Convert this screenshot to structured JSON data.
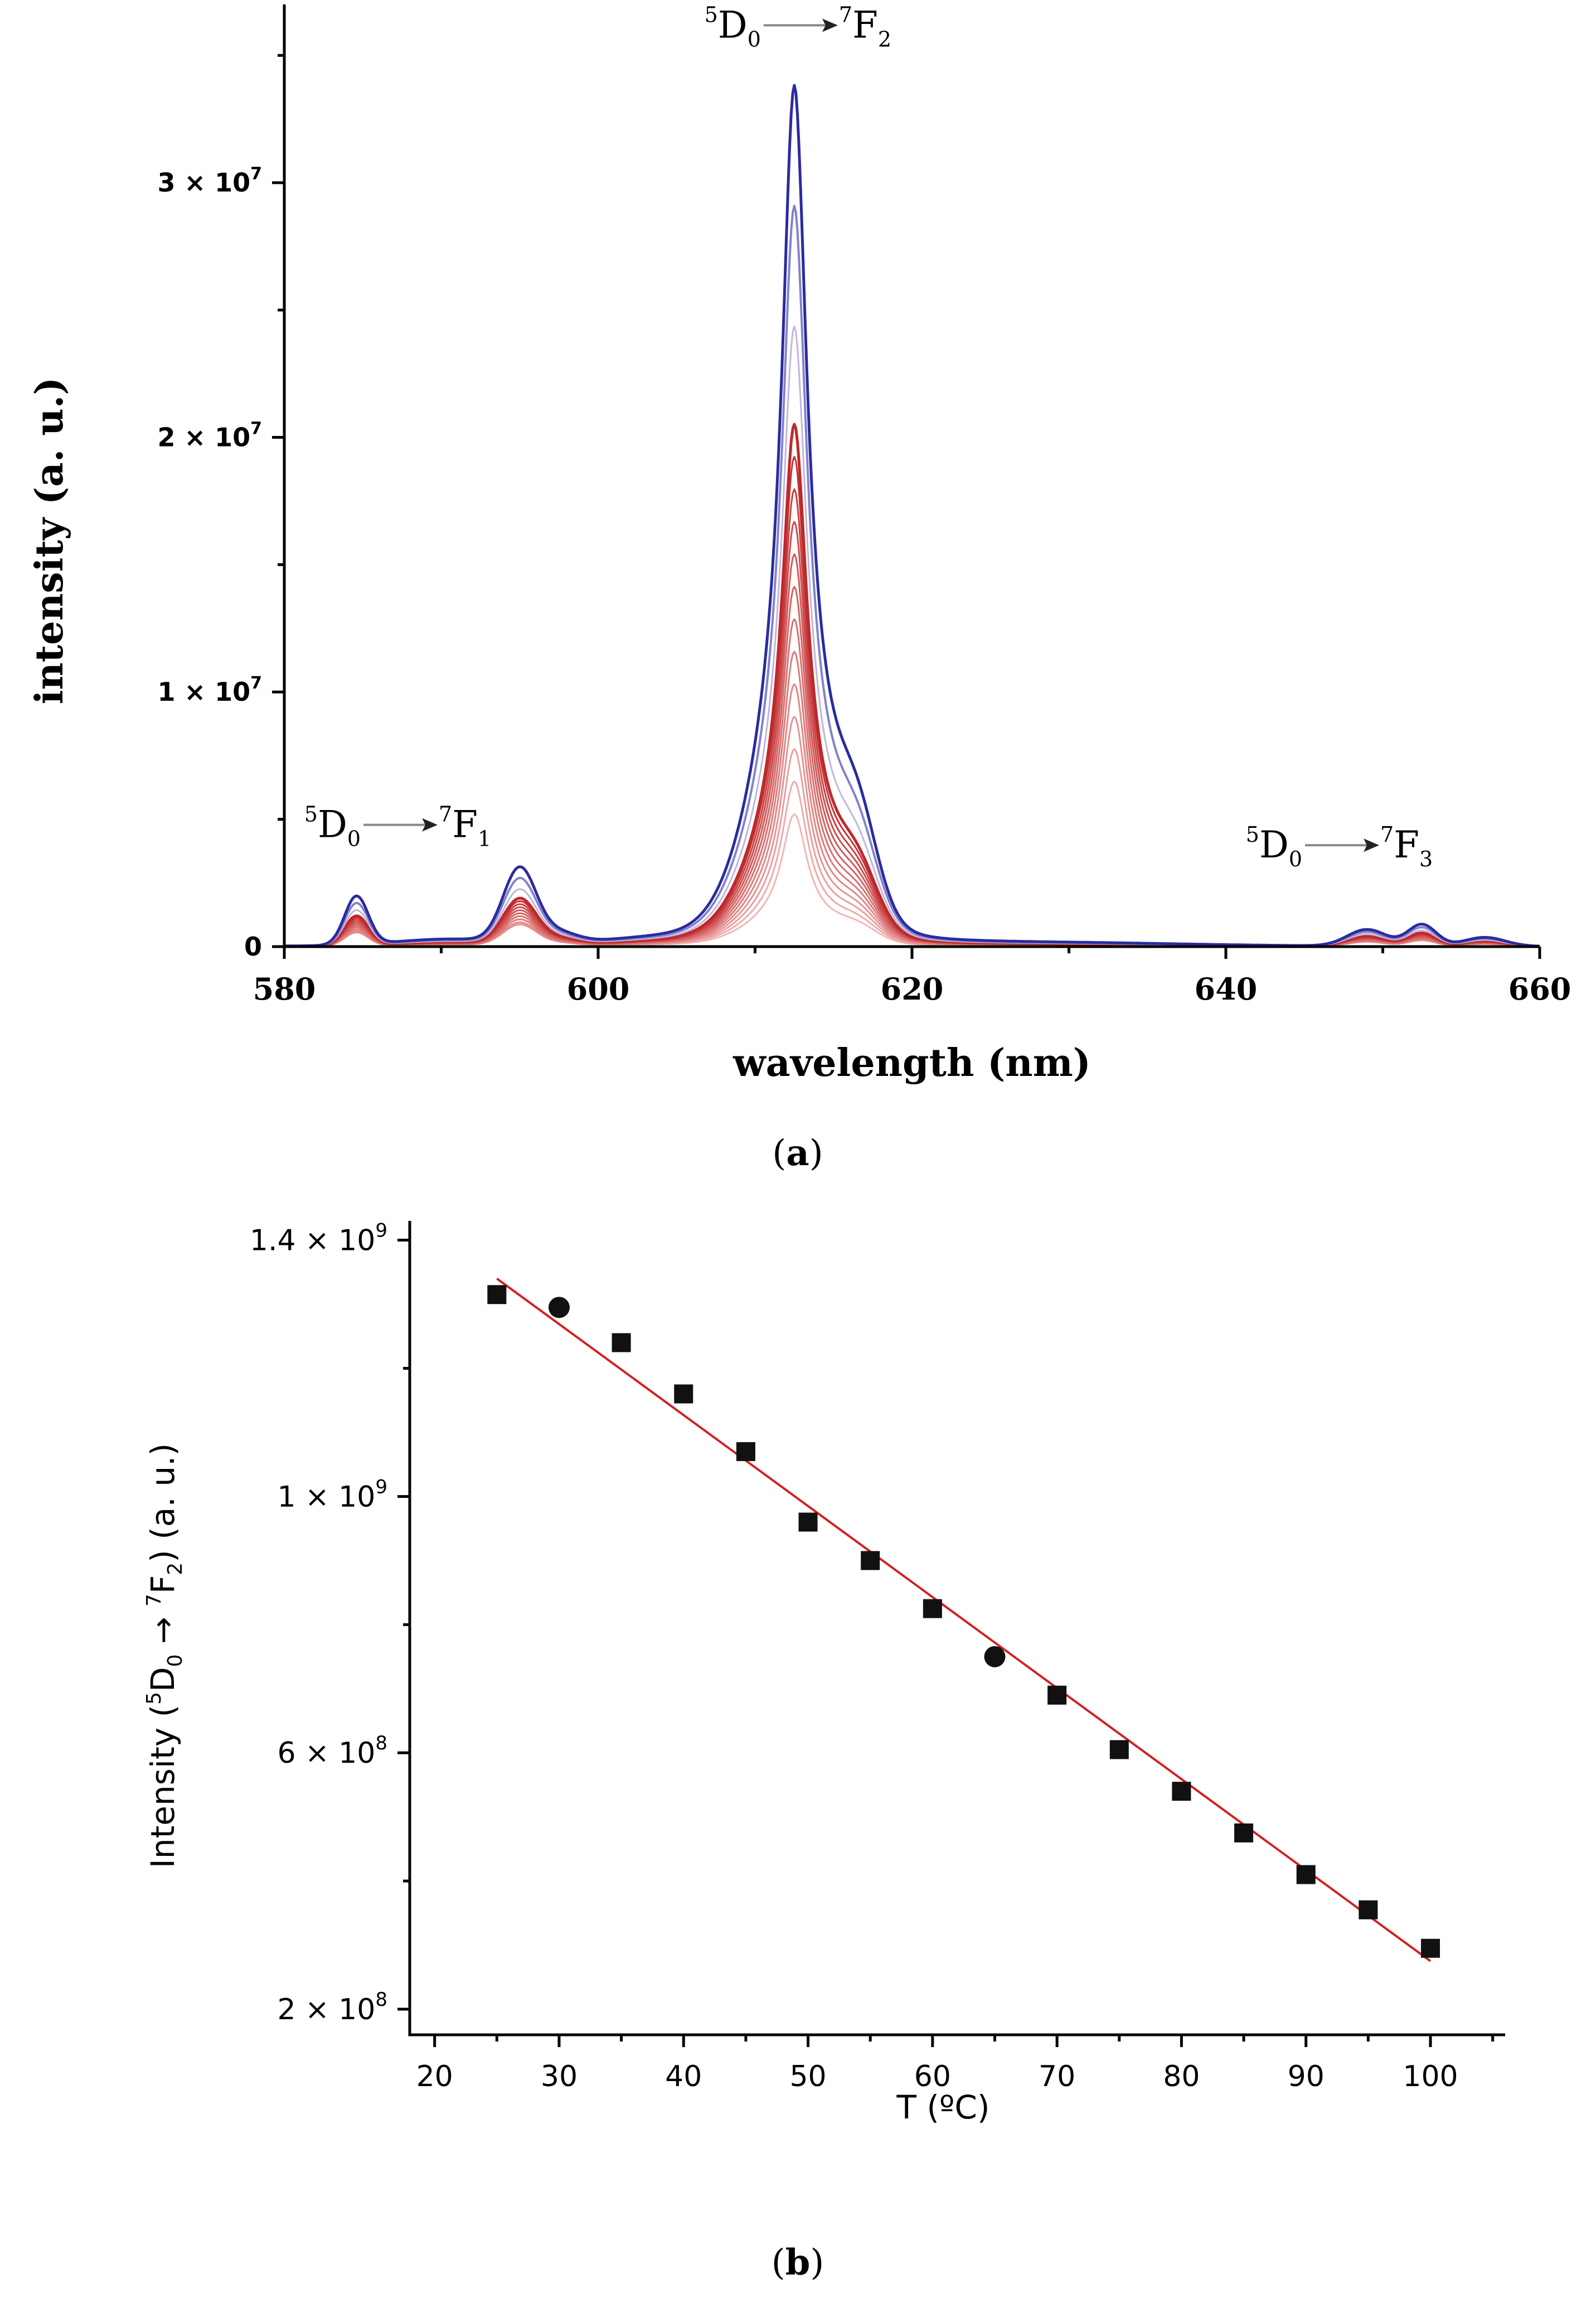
{
  "chart_data": [
    {
      "panel": "a",
      "type": "line",
      "panel_label": "(a)",
      "xlabel": "wavelength (nm)",
      "ylabel": "intensity (a. u.)",
      "xlim": [
        580,
        660
      ],
      "ylim": [
        0,
        37000000
      ],
      "x_ticks": [
        580,
        600,
        620,
        640,
        660
      ],
      "x_tick_labels": [
        "580",
        "600",
        "620",
        "640",
        "660"
      ],
      "y_ticks": [
        0,
        10000000,
        20000000,
        30000000
      ],
      "y_tick_labels": [
        {
          "mantissa": "0",
          "exp": ""
        },
        {
          "mantissa": "1 × 10",
          "exp": "7"
        },
        {
          "mantissa": "2 × 10",
          "exp": "7"
        },
        {
          "mantissa": "3 × 10",
          "exp": "7"
        }
      ],
      "annotations": [
        {
          "upper": "5",
          "base": "D",
          "sub": "0",
          "target_upper": "7",
          "target_base": "F",
          "target_sub": "1",
          "at_x": 587,
          "at_y": 4300000
        },
        {
          "upper": "5",
          "base": "D",
          "sub": "0",
          "target_upper": "7",
          "target_base": "F",
          "target_sub": "2",
          "at_x": 612.5,
          "at_y": 35700000
        },
        {
          "upper": "5",
          "base": "D",
          "sub": "0",
          "target_upper": "7",
          "target_base": "F",
          "target_sub": "3",
          "at_x": 647,
          "at_y": 3500000
        }
      ],
      "peaks_nm": [
        584.5,
        595,
        612.5,
        616.5,
        649,
        652.5
      ],
      "series_note": "spectra recorded at increasing temperature, colour from blue (low T) to red (high T)",
      "curve_count": 16,
      "peak_612_max": 33800000,
      "peak_612_first_red": 20500000,
      "peak_612_min": 5200000,
      "blue_color": "#2b2ba0",
      "red_color": "#c0282a",
      "light_red_color": "#f2b7b5"
    },
    {
      "panel": "b",
      "type": "scatter",
      "panel_label": "(b)",
      "xlabel": "T (ºC)",
      "ylabel_parts": {
        "prefix": "Intensity (",
        "s1": "5",
        "base1": "D",
        "sub1": "0",
        "s2": "7",
        "base2": "F",
        "sub2": "2",
        "suffix": ")  (a. u.)"
      },
      "xlim": [
        18,
        106
      ],
      "ylim": [
        160000000,
        1430000000
      ],
      "x_ticks": [
        20,
        30,
        40,
        50,
        60,
        70,
        80,
        90,
        100
      ],
      "x_tick_labels": [
        "20",
        "30",
        "40",
        "50",
        "60",
        "70",
        "80",
        "90",
        "100"
      ],
      "y_ticks": [
        200000000,
        600000000,
        1000000000,
        1400000000
      ],
      "y_tick_labels": [
        {
          "mantissa": "2 × 10",
          "exp": "8"
        },
        {
          "mantissa": "6 × 10",
          "exp": "8"
        },
        {
          "mantissa": "1 × 10",
          "exp": "9"
        },
        {
          "mantissa": "1.4 × 10",
          "exp": "9"
        }
      ],
      "x": [
        25,
        30,
        35,
        40,
        45,
        50,
        55,
        60,
        65,
        70,
        75,
        80,
        85,
        90,
        95,
        100
      ],
      "y": [
        1315000000,
        1295000000,
        1240000000,
        1160000000,
        1070000000,
        960000000,
        900000000,
        825000000,
        750000000,
        690000000,
        605000000,
        540000000,
        475000000,
        410000000,
        355000000,
        295000000
      ],
      "marker_shapes": [
        "square",
        "circle",
        "square",
        "square",
        "square",
        "square",
        "square",
        "square",
        "circle",
        "square",
        "square",
        "square",
        "square",
        "square",
        "square",
        "square"
      ],
      "fit": {
        "x": [
          25,
          100
        ],
        "y": [
          1340000000,
          275000000
        ],
        "color": "#d42020"
      }
    }
  ]
}
